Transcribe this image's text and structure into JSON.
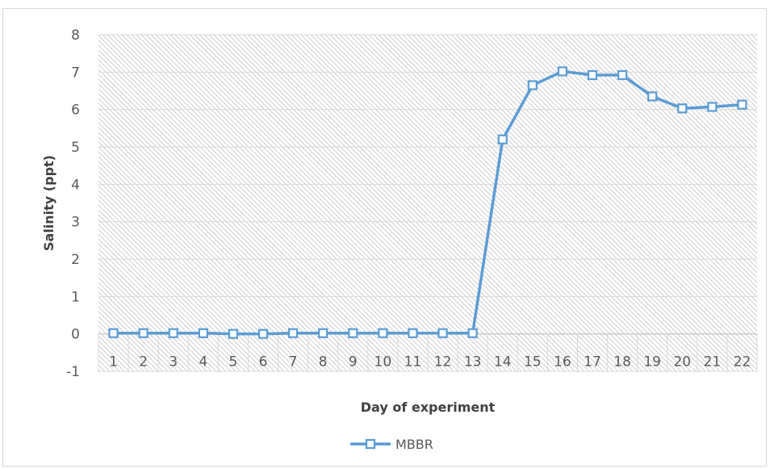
{
  "chart_data": {
    "type": "line",
    "title": "",
    "xlabel": "Day of experiment",
    "ylabel": "Salinity (ppt)",
    "ylim": [
      -1,
      8
    ],
    "yticks": [
      -1,
      0,
      1,
      2,
      3,
      4,
      5,
      6,
      7,
      8
    ],
    "categories": [
      "1",
      "2",
      "3",
      "4",
      "5",
      "6",
      "7",
      "8",
      "9",
      "10",
      "11",
      "12",
      "13",
      "14",
      "15",
      "16",
      "17",
      "18",
      "19",
      "20",
      "21",
      "22"
    ],
    "grid": "hatched",
    "legend_position": "bottom",
    "series": [
      {
        "name": "MBBR",
        "color": "#5b9bd5",
        "marker": "square-open",
        "values": [
          0.02,
          0.02,
          0.02,
          0.02,
          0.0,
          0.0,
          0.02,
          0.02,
          0.02,
          0.02,
          0.02,
          0.02,
          0.02,
          5.2,
          6.65,
          7.02,
          6.92,
          6.92,
          6.35,
          6.03,
          6.07,
          6.13
        ]
      }
    ]
  }
}
